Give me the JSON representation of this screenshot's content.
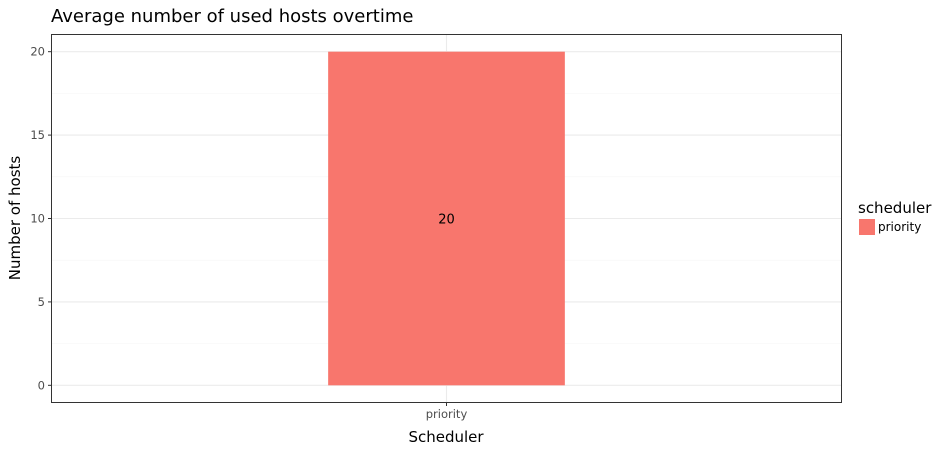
{
  "chart_data": {
    "type": "bar",
    "title": "Average number of used hosts overtime",
    "xlabel": "Scheduler",
    "ylabel": "Number of hosts",
    "categories": [
      "priority"
    ],
    "series": [
      {
        "name": "priority",
        "values": [
          20
        ],
        "color": "#F8766D"
      }
    ],
    "data_labels": [
      "20"
    ],
    "ylim": [
      -1,
      21
    ],
    "yticks": [
      0,
      5,
      10,
      15,
      20
    ],
    "yticks_minor": [
      2.5,
      7.5,
      12.5,
      17.5
    ],
    "grid": true,
    "legend": {
      "title": "scheduler",
      "position": "right",
      "items": [
        {
          "label": "priority",
          "color": "#F8766D"
        }
      ]
    },
    "colors": {
      "panel_border": "#333333",
      "grid_major": "#ebebeb",
      "grid_minor": "#f5f5f5",
      "tick_text": "#4d4d4d"
    }
  }
}
